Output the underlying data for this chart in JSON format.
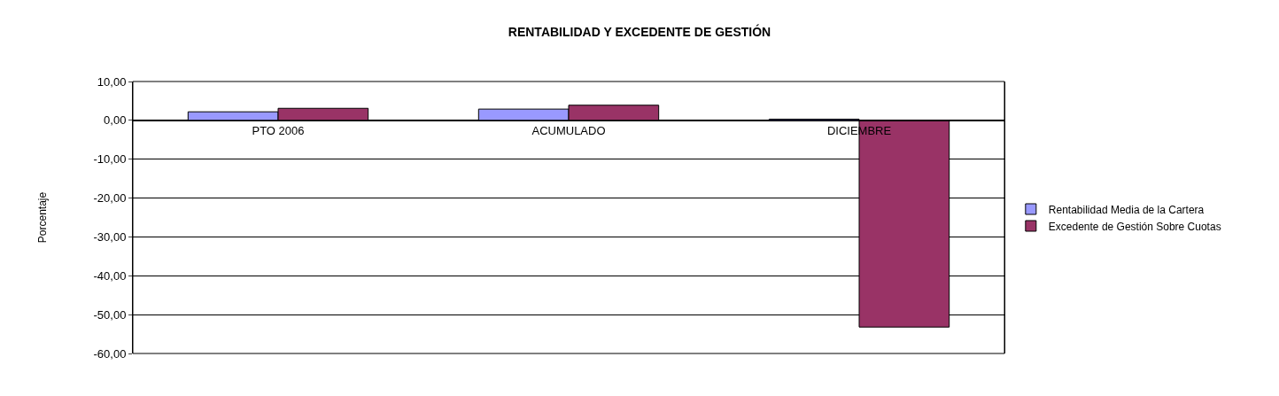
{
  "chart_data": {
    "type": "bar",
    "title": "RENTABILIDAD Y EXCEDENTE DE GESTIÓN",
    "ylabel": "Porcentaje",
    "categories": [
      "PTO 2006",
      "ACUMULADO",
      "DICIEMBRE"
    ],
    "series": [
      {
        "name": "Rentabilidad Media de la Cartera",
        "color": "#9999ff",
        "values": [
          2.2,
          2.9,
          0.3
        ]
      },
      {
        "name": "Excedente de Gestión Sobre Cuotas",
        "color": "#993366",
        "values": [
          3.1,
          3.9,
          -53.2
        ]
      }
    ],
    "ylim": [
      -60,
      10
    ],
    "yticks": [
      {
        "value": 10,
        "label": "10,00"
      },
      {
        "value": 0,
        "label": "0,00"
      },
      {
        "value": -10,
        "label": "-10,00"
      },
      {
        "value": -20,
        "label": "-20,00"
      },
      {
        "value": -30,
        "label": "-30,00"
      },
      {
        "value": -40,
        "label": "-40,00"
      },
      {
        "value": -50,
        "label": "-50,00"
      },
      {
        "value": -60,
        "label": "-60,00"
      }
    ],
    "grid": "y",
    "legend": "right"
  }
}
